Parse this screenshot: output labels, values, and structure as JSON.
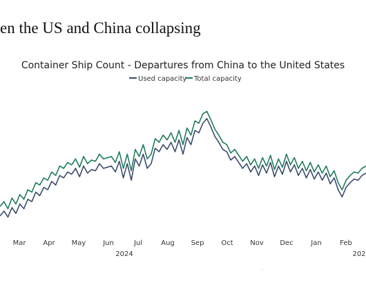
{
  "headline": "en the US and China collapsing",
  "chart_data": {
    "type": "line",
    "title": "Container Ship Count - Departures from China to the United States",
    "legend_position": "top-center",
    "grid": false,
    "xlabel": "",
    "ylabel": "",
    "x_tick_labels": [
      "Mar",
      "Apr",
      "May",
      "Jun",
      "Jul",
      "Aug",
      "Sep",
      "Oct",
      "Nov",
      "Dec",
      "Jan",
      "Feb"
    ],
    "year_labels": [
      "2024",
      "202"
    ],
    "series": [
      {
        "name": "Used capacity",
        "color": "#3b4a6b",
        "values": [
          18,
          22,
          17,
          25,
          20,
          28,
          24,
          32,
          30,
          38,
          35,
          42,
          40,
          47,
          44,
          52,
          50,
          55,
          53,
          58,
          51,
          60,
          54,
          57,
          56,
          62,
          58,
          59,
          60,
          55,
          64,
          50,
          62,
          48,
          66,
          60,
          70,
          58,
          62,
          75,
          72,
          78,
          74,
          80,
          72,
          82,
          70,
          84,
          78,
          90,
          88,
          96,
          100,
          93,
          85,
          80,
          74,
          72,
          65,
          68,
          63,
          58,
          62,
          55,
          60,
          52,
          61,
          54,
          63,
          51,
          60,
          53,
          64,
          55,
          61,
          52,
          58,
          50,
          57,
          49,
          55,
          48,
          54,
          45,
          50,
          40,
          34,
          42,
          46,
          49,
          48,
          52,
          54
        ]
      },
      {
        "name": "Total capacity",
        "color": "#1f7a5c",
        "values": [
          26,
          30,
          24,
          33,
          28,
          36,
          32,
          40,
          38,
          46,
          44,
          50,
          48,
          55,
          52,
          60,
          58,
          63,
          61,
          66,
          59,
          68,
          62,
          65,
          64,
          70,
          66,
          67,
          68,
          63,
          72,
          58,
          70,
          56,
          74,
          68,
          78,
          66,
          70,
          83,
          80,
          86,
          82,
          88,
          80,
          90,
          78,
          92,
          86,
          98,
          96,
          104,
          106,
          99,
          91,
          86,
          80,
          78,
          71,
          74,
          69,
          64,
          68,
          61,
          66,
          58,
          67,
          60,
          69,
          57,
          66,
          59,
          70,
          61,
          67,
          58,
          64,
          56,
          63,
          55,
          61,
          54,
          60,
          51,
          56,
          46,
          40,
          48,
          52,
          55,
          54,
          58,
          60
        ]
      }
    ]
  }
}
